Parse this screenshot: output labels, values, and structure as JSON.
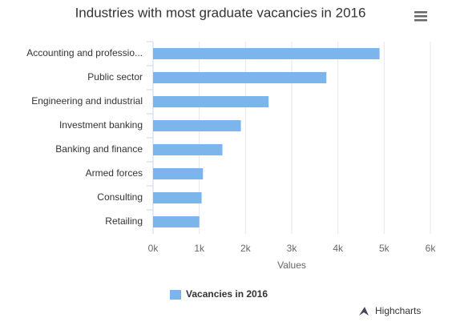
{
  "chart_data": {
    "type": "bar",
    "orientation": "horizontal",
    "title": "Industries with most graduate vacancies in 2016",
    "categories": [
      "Accounting and professio...",
      "Public sector",
      "Engineering and industrial",
      "Investment banking",
      "Banking and finance",
      "Armed forces",
      "Consulting",
      "Retailing"
    ],
    "series": [
      {
        "name": "Vacancies in 2016",
        "color": "#7cb5ec",
        "values": [
          4900,
          3750,
          2500,
          1900,
          1500,
          1080,
          1050,
          1000
        ]
      }
    ],
    "xlim": [
      0,
      6000
    ],
    "xticks": [
      {
        "value": 0,
        "label": "0k"
      },
      {
        "value": 1000,
        "label": "1k"
      },
      {
        "value": 2000,
        "label": "2k"
      },
      {
        "value": 3000,
        "label": "3k"
      },
      {
        "value": 4000,
        "label": "4k"
      },
      {
        "value": 5000,
        "label": "5k"
      },
      {
        "value": 6000,
        "label": "6k"
      }
    ],
    "x_label": "Values",
    "grid": true,
    "legend": "bottom",
    "credits": "Highcharts"
  }
}
